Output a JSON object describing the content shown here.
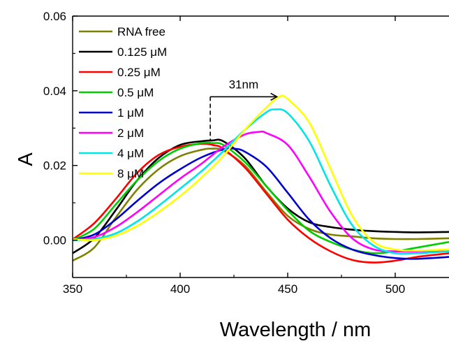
{
  "chart_data": {
    "type": "line",
    "title": "",
    "xlabel": "Wavelength / nm",
    "ylabel": "A",
    "xlim": [
      350,
      525
    ],
    "ylim": [
      -0.01,
      0.06
    ],
    "xticks": [
      350,
      400,
      450,
      500
    ],
    "xtick_labels": [
      "350",
      "400",
      "450",
      "500"
    ],
    "yticks": [
      0.0,
      0.02,
      0.04,
      0.06
    ],
    "ytick_labels": [
      "0.00",
      "0.02",
      "0.04",
      "0.06"
    ],
    "legend_placement": "top-left",
    "annotation": {
      "text": "31nm",
      "from_x": 414,
      "to_x": 445,
      "y": 0.0384,
      "dash_bottom_y": 0.0265
    },
    "series": [
      {
        "name": "RNA free",
        "color": "#808000",
        "x": [
          350,
          360,
          370,
          380,
          390,
          400,
          410,
          415,
          420,
          430,
          440,
          450,
          460,
          470,
          480,
          490,
          500,
          510,
          525
        ],
        "y": [
          -0.0055,
          -0.002,
          0.006,
          0.0135,
          0.019,
          0.0225,
          0.0242,
          0.0245,
          0.024,
          0.02,
          0.013,
          0.0065,
          0.003,
          0.0015,
          0.001,
          0.0005,
          0.0003,
          0.0003,
          0.0005
        ]
      },
      {
        "name": "0.125 μM",
        "color": "#000000",
        "x": [
          350,
          360,
          370,
          380,
          390,
          400,
          410,
          415,
          420,
          430,
          440,
          450,
          460,
          470,
          480,
          490,
          500,
          510,
          525
        ],
        "y": [
          -0.0035,
          0.0005,
          0.008,
          0.016,
          0.022,
          0.0255,
          0.0265,
          0.0267,
          0.0265,
          0.022,
          0.0145,
          0.0085,
          0.0048,
          0.0035,
          0.0028,
          0.0024,
          0.0022,
          0.0021,
          0.0022
        ]
      },
      {
        "name": "0.25 μM",
        "color": "#ff0000",
        "x": [
          350,
          360,
          370,
          380,
          390,
          400,
          410,
          415,
          420,
          430,
          440,
          450,
          460,
          470,
          480,
          490,
          500,
          510,
          525
        ],
        "y": [
          0.0002,
          0.0045,
          0.011,
          0.018,
          0.0228,
          0.025,
          0.0258,
          0.0255,
          0.0245,
          0.0195,
          0.0125,
          0.0055,
          0.0005,
          -0.003,
          -0.0053,
          -0.006,
          -0.0055,
          -0.0045,
          -0.0035
        ]
      },
      {
        "name": "0.5 μM",
        "color": "#00cc00",
        "x": [
          350,
          360,
          370,
          380,
          390,
          400,
          410,
          415,
          420,
          430,
          440,
          450,
          460,
          470,
          480,
          490,
          500,
          510,
          525
        ],
        "y": [
          0.0,
          0.003,
          0.0095,
          0.016,
          0.0212,
          0.0245,
          0.026,
          0.026,
          0.0255,
          0.021,
          0.0145,
          0.008,
          0.0025,
          -0.0005,
          -0.0025,
          -0.0035,
          -0.003,
          -0.002,
          -0.0005
        ]
      },
      {
        "name": "1 μM",
        "color": "#0000cc",
        "x": [
          350,
          360,
          370,
          380,
          390,
          400,
          410,
          420,
          425,
          430,
          440,
          450,
          460,
          470,
          480,
          490,
          500,
          510,
          525
        ],
        "y": [
          0.0,
          0.0015,
          0.0055,
          0.0105,
          0.0152,
          0.019,
          0.0222,
          0.0243,
          0.0245,
          0.0237,
          0.0197,
          0.0127,
          0.0055,
          0.0005,
          -0.0025,
          -0.004,
          -0.0048,
          -0.005,
          -0.0045
        ]
      },
      {
        "name": "2 μM",
        "color": "#ff00ff",
        "x": [
          350,
          360,
          370,
          380,
          390,
          400,
          410,
          420,
          430,
          437,
          440,
          450,
          460,
          470,
          480,
          490,
          500,
          510,
          525
        ],
        "y": [
          0.0,
          0.0008,
          0.0035,
          0.0075,
          0.012,
          0.0165,
          0.0205,
          0.025,
          0.0283,
          0.029,
          0.0287,
          0.0255,
          0.017,
          0.0075,
          0.0005,
          -0.0025,
          -0.003,
          -0.003,
          -0.0028
        ]
      },
      {
        "name": "4 μM",
        "color": "#00e5e5",
        "x": [
          350,
          360,
          370,
          380,
          390,
          400,
          410,
          420,
          430,
          440,
          444,
          450,
          460,
          470,
          480,
          490,
          500,
          510,
          525
        ],
        "y": [
          0.0,
          0.0003,
          0.0018,
          0.005,
          0.0092,
          0.0138,
          0.0185,
          0.0238,
          0.0295,
          0.0342,
          0.035,
          0.034,
          0.0265,
          0.0145,
          0.004,
          -0.0015,
          -0.0035,
          -0.0035,
          -0.003
        ]
      },
      {
        "name": "8 μM",
        "color": "#ffff00",
        "x": [
          350,
          360,
          370,
          380,
          390,
          400,
          410,
          420,
          430,
          440,
          446,
          450,
          460,
          470,
          480,
          490,
          500,
          510,
          525
        ],
        "y": [
          0.0003,
          0.0,
          0.0012,
          0.0038,
          0.0075,
          0.0118,
          0.0168,
          0.0225,
          0.0295,
          0.0355,
          0.0384,
          0.0378,
          0.0315,
          0.019,
          0.0065,
          -0.0005,
          -0.0025,
          -0.0028,
          -0.0025
        ]
      }
    ]
  }
}
